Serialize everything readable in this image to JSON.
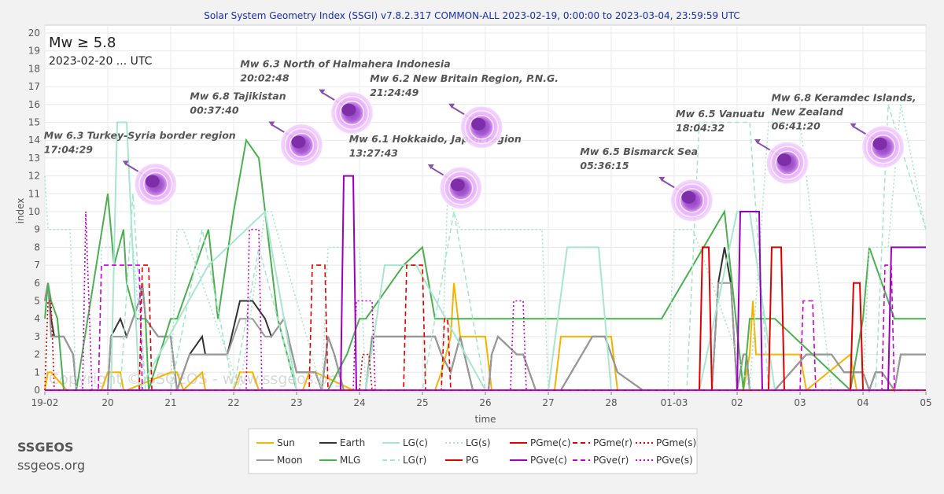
{
  "header": {
    "title": "Solar System Geometry Index (SSGI) v7.8.2.317 COMMON-ALL 2023-02-19,  0:00:00 to 2023-03-04, 23:59:59 UTC"
  },
  "filter": {
    "magnitude": "Mw ≥ 5.8",
    "date": "2023-02-20 ... UTC"
  },
  "brand": {
    "name": "SSGEOS",
    "url": "ssgeos.org"
  },
  "watermark": "Copyright © SSGEOS - www.ssgeos.org",
  "colors": {
    "Sun": "#f5b400",
    "Moon": "#999999",
    "Earth": "#333333",
    "MLG": "#4caf50",
    "LG": "#a8e6cf",
    "PG": "#e00000",
    "PGve": "#9900bb",
    "PGve_dashed": "#cc00cc",
    "background": "#f2f2f2",
    "plot_background": "#ffffff",
    "grid": "#e6e6e6",
    "title": "#1a2eb0",
    "earthquake_marker": "#c879e8"
  },
  "chart_data": {
    "type": "line",
    "xlabel": "time",
    "ylabel": "index",
    "ylim": [
      0,
      20
    ],
    "y_ticks": [
      0,
      1,
      2,
      3,
      4,
      5,
      6,
      7,
      8,
      9,
      10,
      11,
      12,
      13,
      14,
      15,
      16,
      17,
      18,
      19,
      20
    ],
    "xlim": [
      "2023-02-19",
      "2023-03-05"
    ],
    "x_tick_labels": [
      "19-02",
      "20",
      "21",
      "22",
      "23",
      "24",
      "25",
      "26",
      "27",
      "28",
      "01-03",
      "02",
      "03",
      "04",
      "05"
    ],
    "grid": true,
    "legend_position": "bottom",
    "legend": [
      {
        "label": "Sun",
        "color": "#f5b400",
        "dash": "solid"
      },
      {
        "label": "Earth",
        "color": "#333333",
        "dash": "solid"
      },
      {
        "label": "LG(c)",
        "color": "#a8e6cf",
        "dash": "solid"
      },
      {
        "label": "LG(s)",
        "color": "#a8e6cf",
        "dash": "dotted"
      },
      {
        "label": "PGme(c)",
        "color": "#e00000",
        "dash": "solid"
      },
      {
        "label": "PGme(r)",
        "color": "#e00000",
        "dash": "dashed"
      },
      {
        "label": "PGme(s)",
        "color": "#e00000",
        "dash": "dotted"
      },
      {
        "label": "Moon",
        "color": "#999999",
        "dash": "solid"
      },
      {
        "label": "MLG",
        "color": "#4caf50",
        "dash": "solid"
      },
      {
        "label": "LG(r)",
        "color": "#a8e6cf",
        "dash": "dashed"
      },
      {
        "label": "PG",
        "color": "#e00000",
        "dash": "solid"
      },
      {
        "label": "PGve(c)",
        "color": "#9900bb",
        "dash": "solid"
      },
      {
        "label": "PGve(r)",
        "color": "#cc00cc",
        "dash": "dashed"
      },
      {
        "label": "PGve(s)",
        "color": "#cc00cc",
        "dash": "dotted"
      }
    ],
    "series": [
      {
        "name": "Sun",
        "color": "#f5b400",
        "dash": "solid",
        "x": [
          0,
          0.05,
          0.1,
          0.35,
          0.4,
          0.9,
          1.0,
          1.2,
          1.25,
          1.3,
          2.0,
          2.1,
          2.2,
          2.5,
          2.55,
          3.0,
          3.1,
          3.3,
          3.4,
          4.1,
          4.2,
          4.3,
          4.9,
          4.95,
          5.1,
          5.15,
          6.2,
          6.3,
          6.45,
          6.5,
          6.6,
          7.0,
          7.1,
          8.1,
          8.2,
          9.0,
          9.1,
          9.4,
          9.5,
          10.5,
          10.6,
          11.1,
          11.2,
          11.25,
          11.3,
          12.0,
          12.1,
          12.8,
          12.9,
          14.0
        ],
        "y": [
          0,
          1,
          1,
          0,
          0,
          0,
          1,
          1,
          0,
          0,
          1,
          1,
          0,
          1,
          0,
          0,
          1,
          1,
          0,
          0,
          1,
          1,
          0,
          0,
          0,
          0,
          0,
          1,
          3,
          6,
          3,
          3,
          0,
          0,
          3,
          3,
          0,
          0,
          0,
          0,
          0,
          0,
          2,
          5,
          2,
          2,
          0,
          2,
          0,
          0
        ]
      },
      {
        "name": "Earth",
        "color": "#333333",
        "dash": "solid",
        "x": [
          0,
          0.05,
          0.1,
          0.15,
          0.3,
          0.45,
          0.5,
          1.0,
          1.05,
          1.2,
          1.3,
          1.5,
          1.55,
          1.6,
          1.8,
          2.0,
          2.1,
          2.3,
          2.5,
          2.55,
          2.9,
          3.1,
          3.3,
          3.5,
          3.6,
          3.8,
          4.0,
          4.3,
          4.4,
          4.5,
          4.6,
          4.75,
          5.1,
          5.2,
          6.2,
          6.3,
          6.45,
          6.6,
          6.8,
          7.05,
          7.1,
          7.2,
          7.5,
          7.6,
          7.8,
          8.2,
          8.7,
          8.9,
          9.0,
          9.1,
          9.5,
          10.6,
          10.7,
          10.8,
          10.85,
          10.9,
          11.0,
          11.1,
          11.15,
          11.2,
          11.4,
          11.6,
          12.1,
          12.5,
          12.7,
          12.9,
          13.0,
          13.1,
          13.2,
          13.3,
          13.5,
          13.6,
          14.0
        ],
        "y": [
          5,
          6,
          4,
          3,
          3,
          2,
          0,
          0,
          3,
          4,
          3,
          5,
          6,
          4,
          3,
          3,
          0,
          2,
          3,
          2,
          2,
          5,
          5,
          4,
          3,
          4,
          1,
          1,
          0,
          3,
          2,
          0,
          0,
          3,
          3,
          2,
          1,
          3,
          0,
          0,
          2,
          3,
          2,
          2,
          0,
          0,
          3,
          3,
          2,
          1,
          0,
          0,
          6,
          8,
          7,
          6,
          0,
          2,
          2,
          0,
          0,
          0,
          2,
          2,
          1,
          1,
          1,
          0,
          1,
          1,
          0,
          2,
          2
        ]
      },
      {
        "name": "Moon",
        "color": "#999999",
        "dash": "solid",
        "x": [
          0,
          0.05,
          0.1,
          0.15,
          0.3,
          0.45,
          0.5,
          1.0,
          1.05,
          1.2,
          1.3,
          1.5,
          1.55,
          1.6,
          1.8,
          2.0,
          2.1,
          2.3,
          2.5,
          2.55,
          2.9,
          3.1,
          3.3,
          3.5,
          3.6,
          3.8,
          4.0,
          4.3,
          4.4,
          4.5,
          4.6,
          4.75,
          5.1,
          5.2,
          6.2,
          6.3,
          6.45,
          6.6,
          6.8,
          7.05,
          7.1,
          7.2,
          7.5,
          7.6,
          7.8,
          8.2,
          8.7,
          8.9,
          9.0,
          9.1,
          9.5,
          10.6,
          10.7,
          10.8,
          10.85,
          10.9,
          11.0,
          11.1,
          11.15,
          11.2,
          11.4,
          11.6,
          12.1,
          12.5,
          12.7,
          12.9,
          13.0,
          13.1,
          13.2,
          13.3,
          13.5,
          13.6,
          14.0
        ],
        "y": [
          5,
          6,
          3,
          3,
          3,
          2,
          0,
          0,
          3,
          3,
          3,
          5,
          6,
          4,
          3,
          3,
          0,
          2,
          2,
          2,
          2,
          4,
          4,
          3,
          3,
          4,
          1,
          1,
          0,
          3,
          2,
          0,
          0,
          3,
          3,
          2,
          1,
          3,
          0,
          0,
          2,
          3,
          2,
          2,
          0,
          0,
          3,
          3,
          2,
          1,
          0,
          0,
          6,
          6,
          6,
          6,
          0,
          2,
          2,
          0,
          0,
          0,
          2,
          2,
          1,
          1,
          1,
          0,
          1,
          1,
          0,
          2,
          2
        ]
      },
      {
        "name": "MLG",
        "color": "#4caf50",
        "dash": "solid",
        "x": [
          0,
          0.05,
          0.1,
          0.2,
          0.3,
          0.4,
          0.5,
          1.0,
          1.1,
          1.25,
          1.3,
          1.45,
          1.6,
          1.65,
          2.0,
          2.1,
          2.6,
          2.75,
          3.0,
          3.2,
          3.4,
          3.7,
          4.0,
          4.5,
          4.8,
          5.0,
          5.1,
          5.7,
          6.0,
          6.2,
          6.3,
          7.0,
          7.2,
          7.5,
          8.0,
          8.5,
          9.0,
          9.5,
          9.8,
          10.8,
          11.1,
          11.2,
          11.6,
          12.8,
          13.0,
          13.1,
          13.5,
          14.0
        ],
        "y": [
          4,
          6,
          5,
          4,
          0,
          0,
          0,
          11,
          7,
          9,
          6,
          4,
          4,
          0,
          4,
          4,
          9,
          4,
          10,
          14,
          13,
          4,
          0,
          0,
          2,
          4,
          4,
          7,
          8,
          4,
          4,
          4,
          4,
          4,
          4,
          4,
          4,
          4,
          4,
          10,
          0,
          4,
          4,
          0,
          4,
          8,
          4,
          4
        ]
      },
      {
        "name": "LG(c)",
        "color": "#a8e6cf",
        "dash": "solid",
        "x": [
          0,
          1.05,
          1.15,
          1.3,
          1.5,
          2.6,
          3.5,
          4.0,
          4.5,
          5.1,
          5.4,
          5.9,
          7.0,
          8.0,
          8.3,
          8.8,
          9.0,
          10.4,
          11.0,
          11.2,
          11.6,
          12.8,
          13.0,
          14.0
        ],
        "y": [
          0,
          0,
          15,
          15,
          0,
          7,
          10,
          0,
          0,
          0,
          7,
          7,
          0,
          0,
          8,
          8,
          0,
          0,
          10,
          10,
          0,
          0,
          0,
          0
        ]
      },
      {
        "name": "LG(s)",
        "color": "#a8e6cf",
        "dash": "dotted",
        "x": [
          0,
          0.05,
          0.1,
          0.4,
          0.5,
          0.85,
          0.9,
          1.4,
          1.6,
          2.0,
          2.1,
          2.2,
          3.1,
          3.5,
          3.6,
          4.4,
          4.5,
          5.0,
          5.1,
          6.3,
          6.4,
          6.6,
          7.9,
          8.0,
          9.9,
          10.0,
          10.3,
          11.2,
          11.5,
          12.0,
          12.5,
          13.0,
          13.1,
          13.4,
          13.6,
          14.0
        ],
        "y": [
          12,
          9,
          9,
          9,
          0,
          0,
          8,
          8,
          0,
          0,
          9,
          9,
          0,
          10,
          10,
          0,
          8,
          8,
          0,
          0,
          11,
          9,
          9,
          0,
          0,
          9,
          9,
          0,
          15,
          15,
          0,
          0,
          8,
          8,
          16,
          9
        ]
      },
      {
        "name": "LG(r)",
        "color": "#a8e6cf",
        "dash": "dashed",
        "x": [
          0,
          1.2,
          1.4,
          1.6,
          2.0,
          2.5,
          3.0,
          3.4,
          4.0,
          6.0,
          6.5,
          7.0,
          8.0,
          9.0,
          9.5,
          10.2,
          10.4,
          11.2,
          11.5,
          13.2,
          13.4,
          14.0
        ],
        "y": [
          0,
          0,
          11,
          0,
          0,
          9,
          0,
          8,
          0,
          0,
          10,
          0,
          0,
          0,
          0,
          0,
          15,
          15,
          0,
          0,
          16,
          9
        ]
      },
      {
        "name": "PG",
        "color": "#e00000",
        "dash": "solid",
        "x": [
          0,
          10.4,
          10.45,
          10.55,
          10.6,
          11.5,
          11.55,
          11.7,
          11.75,
          12.8,
          12.85,
          12.95,
          13.0,
          14.0
        ],
        "y": [
          0,
          0,
          8,
          8,
          0,
          0,
          8,
          8,
          0,
          0,
          6,
          6,
          0,
          0
        ]
      },
      {
        "name": "PGme(r)",
        "color": "#e00000",
        "dash": "dashed",
        "x": [
          0,
          1.5,
          1.55,
          1.65,
          1.7,
          4.2,
          4.25,
          4.45,
          4.5,
          5.7,
          5.75,
          6.0,
          6.05,
          6.3,
          6.35,
          6.4,
          6.45,
          14.0
        ],
        "y": [
          0,
          0,
          7,
          7,
          0,
          0,
          7,
          7,
          0,
          0,
          7,
          7,
          0,
          0,
          4,
          4,
          0,
          0
        ]
      },
      {
        "name": "PGme(s)",
        "color": "#e00000",
        "dash": "dotted",
        "x": [
          0,
          0.05,
          0.1,
          0.15,
          5.0,
          5.05,
          5.15,
          5.2,
          14.0
        ],
        "y": [
          0,
          5,
          5,
          0,
          0,
          2,
          2,
          0,
          0
        ]
      },
      {
        "name": "PGve(c)",
        "color": "#9900bb",
        "dash": "solid",
        "x": [
          0,
          4.7,
          4.75,
          4.9,
          4.95,
          11.0,
          11.05,
          11.35,
          11.4,
          13.4,
          13.45,
          14.0
        ],
        "y": [
          0,
          0,
          12,
          12,
          0,
          0,
          10,
          10,
          0,
          0,
          8,
          8
        ]
      },
      {
        "name": "PGve(r)",
        "color": "#cc00cc",
        "dash": "dashed",
        "x": [
          0,
          0.85,
          0.9,
          1.5,
          1.55,
          12.0,
          12.05,
          12.2,
          12.25,
          13.3,
          13.35,
          13.45,
          13.5,
          14.0
        ],
        "y": [
          0,
          0,
          7,
          7,
          0,
          0,
          5,
          5,
          0,
          0,
          7,
          7,
          0,
          0
        ]
      },
      {
        "name": "PGve(s)",
        "color": "#cc00cc",
        "dash": "dotted",
        "x": [
          0,
          0.6,
          0.65,
          0.7,
          0.75,
          3.2,
          3.25,
          3.4,
          3.45,
          4.9,
          4.95,
          5.2,
          5.25,
          7.4,
          7.45,
          7.6,
          7.65,
          14.0
        ],
        "y": [
          0,
          0,
          10,
          5,
          0,
          0,
          9,
          9,
          0,
          0,
          5,
          5,
          0,
          0,
          5,
          5,
          0,
          0
        ]
      }
    ],
    "annotations": [
      {
        "text": "Mw 6.3 Turkey-Syria border region",
        "time": "17:04:29",
        "x": 1.71,
        "y": 11.7
      },
      {
        "text": "Mw 6.8 Tajikistan",
        "time": "00:37:40",
        "x": 4.03,
        "y": 13.9
      },
      {
        "text": "Mw 6.3 North of Halmahera Indonesia",
        "time": "20:02:48",
        "x": 4.83,
        "y": 15.7
      },
      {
        "text": "Mw 6.1 Hokkaido, Japan region",
        "time": "13:27:43",
        "x": 6.56,
        "y": 11.5
      },
      {
        "text": "Mw 6.2 New Britain Region, P.N.G.",
        "time": "21:24:49",
        "x": 6.89,
        "y": 14.9
      },
      {
        "text": "Mw 6.5 Bismarck Sea",
        "time": "05:36:15",
        "x": 10.23,
        "y": 10.8
      },
      {
        "text": "Mw 6.5 Vanuatu",
        "time": "18:04:32",
        "x": 11.75,
        "y": 12.9
      },
      {
        "text": "Mw 6.8 Keramdec Islands,",
        "text2": "New Zealand",
        "time": "06:41:20",
        "x": 13.27,
        "y": 13.8
      }
    ]
  }
}
